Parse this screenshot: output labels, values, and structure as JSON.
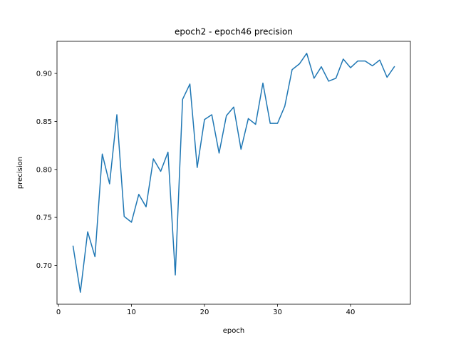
{
  "chart_data": {
    "type": "line",
    "title": "epoch2 - epoch46 precision",
    "xlabel": "epoch",
    "ylabel": "precision",
    "xlim": [
      -0.2,
      48.2
    ],
    "ylim": [
      0.6595,
      0.9335
    ],
    "x_ticks": [
      0,
      10,
      20,
      30,
      40
    ],
    "y_ticks": [
      0.7,
      0.75,
      0.8,
      0.85,
      0.9
    ],
    "x_tick_labels": [
      "0",
      "10",
      "20",
      "30",
      "40"
    ],
    "y_tick_labels": [
      "0.70",
      "0.75",
      "0.80",
      "0.85",
      "0.90"
    ],
    "grid": false,
    "series": [
      {
        "color": "#1f77b4",
        "x": [
          2,
          3,
          4,
          5,
          6,
          7,
          8,
          9,
          10,
          11,
          12,
          13,
          14,
          15,
          16,
          17,
          18,
          19,
          20,
          21,
          22,
          23,
          24,
          25,
          26,
          27,
          28,
          29,
          30,
          31,
          32,
          33,
          34,
          35,
          36,
          37,
          38,
          39,
          40,
          41,
          42,
          43,
          44,
          45,
          46
        ],
        "y": [
          0.72,
          0.672,
          0.735,
          0.709,
          0.816,
          0.785,
          0.857,
          0.751,
          0.745,
          0.774,
          0.761,
          0.811,
          0.798,
          0.818,
          0.69,
          0.873,
          0.889,
          0.802,
          0.852,
          0.857,
          0.817,
          0.856,
          0.865,
          0.821,
          0.853,
          0.847,
          0.89,
          0.848,
          0.848,
          0.866,
          0.904,
          0.91,
          0.921,
          0.895,
          0.907,
          0.892,
          0.895,
          0.915,
          0.906,
          0.913,
          0.913,
          0.908,
          0.914,
          0.896,
          0.907
        ]
      }
    ]
  }
}
